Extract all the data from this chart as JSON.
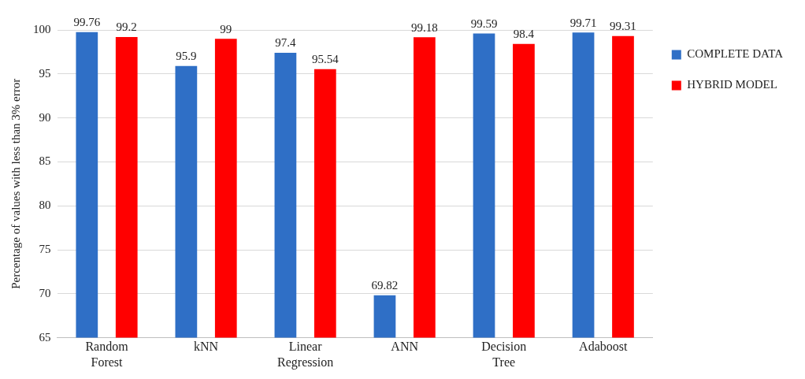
{
  "chart_data": {
    "type": "bar",
    "ylabel": "Percentage of values with less than 3% error",
    "categories": [
      "Random Forest",
      "kNN",
      "Linear Regression",
      "ANN",
      "Decision Tree",
      "Adaboost"
    ],
    "series": [
      {
        "name": "COMPLETE DATA",
        "color": "#2f6fc6",
        "values": [
          99.76,
          95.9,
          97.4,
          69.82,
          99.59,
          99.71
        ]
      },
      {
        "name": "HYBRID MODEL",
        "color": "#ff0000",
        "values": [
          99.2,
          99,
          95.54,
          99.18,
          98.4,
          99.31
        ]
      }
    ],
    "ylim": [
      65,
      100
    ],
    "yticks": [
      65,
      70,
      75,
      80,
      85,
      90,
      95,
      100
    ],
    "grid": "y",
    "legend": "top right",
    "data_labels": true
  }
}
